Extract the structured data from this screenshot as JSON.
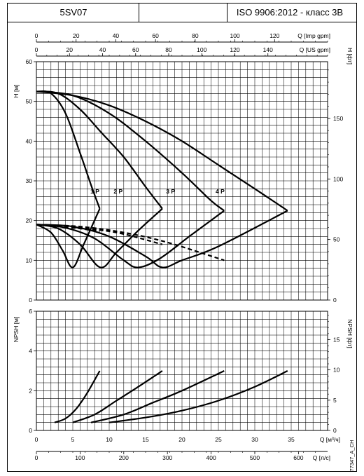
{
  "header": {
    "model": "5SV07",
    "standard": "ISO 9906:2012 - класс 3В"
  },
  "axes": {
    "imp_gpm": {
      "label": "Q [Imp gpm]",
      "ticks": [
        "0",
        "20",
        "40",
        "60",
        "80",
        "100",
        "120"
      ]
    },
    "us_gpm": {
      "label": "Q [US gpm]",
      "ticks": [
        "0",
        "20",
        "40",
        "60",
        "80",
        "100",
        "120",
        "140"
      ]
    },
    "q_m3h": {
      "label": "Q [м³/ч]",
      "ticks": [
        "0",
        "5",
        "10",
        "15",
        "20",
        "25",
        "30",
        "35"
      ]
    },
    "q_ls": {
      "label": "Q [л/с]",
      "ticks": [
        "0",
        "100",
        "200",
        "300",
        "400",
        "500",
        "600"
      ]
    },
    "h_m": {
      "label": "H [м]",
      "ticks": [
        "0",
        "10",
        "20",
        "30",
        "40",
        "50",
        "60"
      ]
    },
    "h_ft": {
      "label": "H [фт]",
      "ticks": [
        "0",
        "50",
        "100",
        "150"
      ]
    },
    "npsh_m": {
      "label": "NPSH [м]",
      "ticks": [
        "0",
        "2",
        "4",
        "6"
      ]
    },
    "npsh_ft": {
      "label": "NPSH [фт]",
      "ticks": [
        "0",
        "5",
        "10",
        "15"
      ]
    }
  },
  "watermark": "77347_A_CH",
  "chart_data": [
    {
      "type": "line",
      "title": "",
      "xlabel": "Q [м³/ч]",
      "ylabel": "H [м]",
      "xlim": [
        0,
        40
      ],
      "ylim": [
        0,
        60
      ],
      "series": [
        {
          "name": "1 P",
          "kind": "head",
          "x": [
            0,
            2,
            4,
            6,
            7.5,
            8.7
          ],
          "y": [
            52.5,
            52,
            47,
            37,
            29,
            23
          ]
        },
        {
          "name": "2 P",
          "kind": "head",
          "x": [
            0,
            3,
            6,
            9,
            12,
            15,
            17.3
          ],
          "y": [
            52.5,
            52,
            48,
            42,
            36,
            28.5,
            23
          ]
        },
        {
          "name": "3 P",
          "kind": "head",
          "x": [
            0,
            5,
            10,
            15,
            20,
            24,
            25.8
          ],
          "y": [
            52.5,
            51.5,
            47,
            40,
            32,
            25,
            22.5
          ]
        },
        {
          "name": "4 P",
          "kind": "head",
          "x": [
            0,
            5,
            10,
            15,
            20,
            25,
            30,
            34.5
          ],
          "y": [
            52.5,
            51.5,
            49,
            45,
            40,
            34,
            28,
            22.5
          ]
        },
        {
          "name": "",
          "kind": "efficiency",
          "x": [
            0,
            2,
            3.6,
            5,
            6.5,
            8.7
          ],
          "y": [
            19,
            17,
            12.5,
            8.2,
            14,
            23
          ]
        },
        {
          "name": "",
          "kind": "efficiency",
          "x": [
            0,
            3,
            6,
            8.8,
            11,
            14,
            17.3
          ],
          "y": [
            19,
            18,
            14,
            8.2,
            12,
            17.5,
            23
          ]
        },
        {
          "name": "",
          "kind": "efficiency",
          "x": [
            0,
            4,
            8,
            12,
            14,
            17,
            21,
            25.8
          ],
          "y": [
            19,
            18.2,
            15.5,
            10,
            8.2,
            10.5,
            16,
            22.5
          ]
        },
        {
          "name": "",
          "kind": "efficiency",
          "x": [
            0,
            5,
            10,
            15,
            17.3,
            20,
            25,
            34.5
          ],
          "y": [
            19,
            18.5,
            16,
            11,
            8.2,
            10,
            13.5,
            22.5
          ]
        },
        {
          "name": "",
          "kind": "npsh-limit",
          "x": [
            0,
            2,
            4,
            6,
            7.5,
            8.7
          ],
          "y": [
            19,
            18.8,
            18.4,
            18,
            17.6,
            17.3
          ]
        },
        {
          "name": "",
          "kind": "npsh-limit",
          "x": [
            0,
            4,
            8,
            12,
            17.3
          ],
          "y": [
            19,
            18.6,
            17.8,
            16.6,
            14
          ]
        },
        {
          "name": "",
          "kind": "npsh-limit",
          "x": [
            0,
            6,
            12,
            18,
            25.8
          ],
          "y": [
            19,
            18.5,
            17,
            14.5,
            10
          ]
        }
      ]
    },
    {
      "type": "line",
      "title": "",
      "xlabel": "Q [м³/ч]",
      "ylabel": "NPSH [м]",
      "xlim": [
        0,
        40
      ],
      "ylim": [
        0,
        6
      ],
      "series": [
        {
          "name": "",
          "x": [
            2.5,
            4,
            5.5,
            7,
            8.7
          ],
          "y": [
            0.4,
            0.6,
            1.1,
            1.9,
            3.0
          ]
        },
        {
          "name": "",
          "x": [
            5,
            8,
            11,
            14,
            17.3
          ],
          "y": [
            0.4,
            0.8,
            1.5,
            2.2,
            3.0
          ]
        },
        {
          "name": "",
          "x": [
            7.5,
            12,
            16,
            20,
            25.8
          ],
          "y": [
            0.4,
            0.8,
            1.4,
            2.0,
            3.0
          ]
        },
        {
          "name": "",
          "x": [
            10,
            15,
            20,
            25,
            30,
            34.5
          ],
          "y": [
            0.4,
            0.65,
            1.0,
            1.5,
            2.2,
            3.0
          ]
        }
      ]
    }
  ]
}
